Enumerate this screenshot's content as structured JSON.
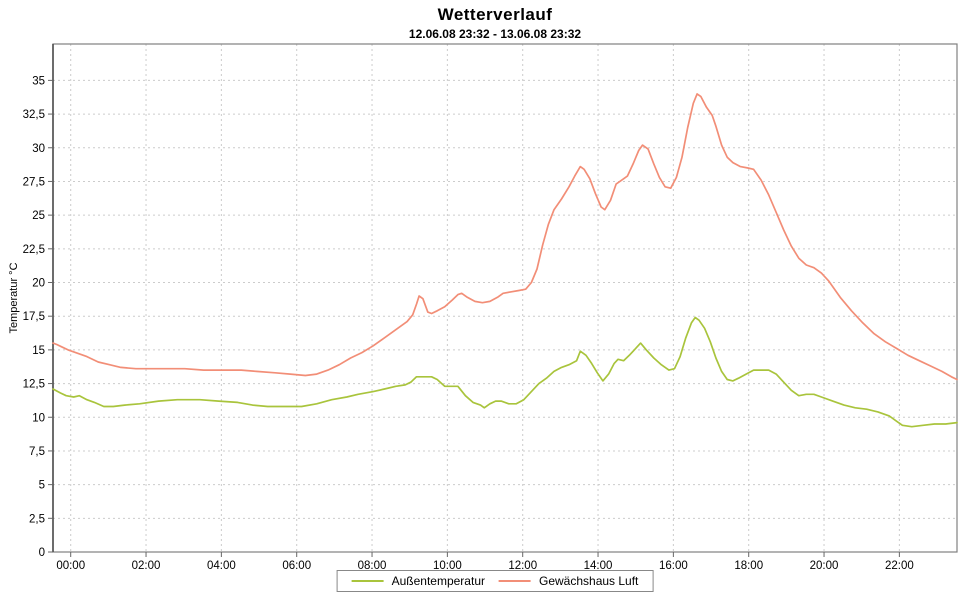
{
  "header": {
    "title": "Wetterverlauf",
    "subtitle": "12.06.08 23:32 - 13.06.08 23:32"
  },
  "colors": {
    "grid": "#cccccc",
    "frame": "#808080",
    "tick": "#666666",
    "text": "#000000",
    "background": "#ffffff",
    "outdoor_series": "#a9c43c",
    "greenhouse_series": "#f28e77"
  },
  "chart_data": {
    "type": "line",
    "title": "Wetterverlauf",
    "subtitle": "12.06.08 23:32 - 13.06.08 23:32",
    "xlabel": "",
    "ylabel": "Temperatur  °C",
    "x_unit": "hours since 12.06.08 23:32",
    "xlim": [
      0,
      24
    ],
    "ylim": [
      0,
      37.7
    ],
    "grid": true,
    "legend_position": "bottom-center",
    "x_ticks": [
      {
        "pos": 0.47,
        "label": "00:00"
      },
      {
        "pos": 2.47,
        "label": "02:00"
      },
      {
        "pos": 4.47,
        "label": "04:00"
      },
      {
        "pos": 6.47,
        "label": "06:00"
      },
      {
        "pos": 8.47,
        "label": "08:00"
      },
      {
        "pos": 10.47,
        "label": "10:00"
      },
      {
        "pos": 12.47,
        "label": "12:00"
      },
      {
        "pos": 14.47,
        "label": "14:00"
      },
      {
        "pos": 16.47,
        "label": "16:00"
      },
      {
        "pos": 18.47,
        "label": "18:00"
      },
      {
        "pos": 20.47,
        "label": "20:00"
      },
      {
        "pos": 22.47,
        "label": "22:00"
      }
    ],
    "y_ticks": [
      {
        "pos": 0,
        "label": "0"
      },
      {
        "pos": 2.5,
        "label": "2,5"
      },
      {
        "pos": 5,
        "label": "5"
      },
      {
        "pos": 7.5,
        "label": "7,5"
      },
      {
        "pos": 10,
        "label": "10"
      },
      {
        "pos": 12.5,
        "label": "12,5"
      },
      {
        "pos": 15,
        "label": "15"
      },
      {
        "pos": 17.5,
        "label": "17,5"
      },
      {
        "pos": 20,
        "label": "20"
      },
      {
        "pos": 22.5,
        "label": "22,5"
      },
      {
        "pos": 25,
        "label": "25"
      },
      {
        "pos": 27.5,
        "label": "27,5"
      },
      {
        "pos": 30,
        "label": "30"
      },
      {
        "pos": 32.5,
        "label": "32,5"
      },
      {
        "pos": 35,
        "label": "35"
      }
    ],
    "series": [
      {
        "name": "Außentemperatur",
        "color": "#a9c43c",
        "points": [
          [
            0,
            12.1
          ],
          [
            0.2,
            11.8
          ],
          [
            0.35,
            11.6
          ],
          [
            0.55,
            11.5
          ],
          [
            0.7,
            11.6
          ],
          [
            0.9,
            11.3
          ],
          [
            1.1,
            11.1
          ],
          [
            1.35,
            10.8
          ],
          [
            1.6,
            10.8
          ],
          [
            1.9,
            10.9
          ],
          [
            2.3,
            11.0
          ],
          [
            2.8,
            11.2
          ],
          [
            3.3,
            11.3
          ],
          [
            3.9,
            11.3
          ],
          [
            4.4,
            11.2
          ],
          [
            4.9,
            11.1
          ],
          [
            5.3,
            10.9
          ],
          [
            5.7,
            10.8
          ],
          [
            6.2,
            10.8
          ],
          [
            6.6,
            10.8
          ],
          [
            7.0,
            11.0
          ],
          [
            7.4,
            11.3
          ],
          [
            7.8,
            11.5
          ],
          [
            8.1,
            11.7
          ],
          [
            8.5,
            11.9
          ],
          [
            8.8,
            12.1
          ],
          [
            9.1,
            12.3
          ],
          [
            9.35,
            12.4
          ],
          [
            9.5,
            12.6
          ],
          [
            9.65,
            13.0
          ],
          [
            9.85,
            13.0
          ],
          [
            10.05,
            13.0
          ],
          [
            10.2,
            12.8
          ],
          [
            10.4,
            12.3
          ],
          [
            10.6,
            12.3
          ],
          [
            10.75,
            12.3
          ],
          [
            10.95,
            11.6
          ],
          [
            11.15,
            11.1
          ],
          [
            11.35,
            10.9
          ],
          [
            11.45,
            10.7
          ],
          [
            11.6,
            11.0
          ],
          [
            11.75,
            11.2
          ],
          [
            11.9,
            11.2
          ],
          [
            12.1,
            11.0
          ],
          [
            12.3,
            11.0
          ],
          [
            12.5,
            11.3
          ],
          [
            12.7,
            11.9
          ],
          [
            12.9,
            12.5
          ],
          [
            13.1,
            12.9
          ],
          [
            13.3,
            13.4
          ],
          [
            13.5,
            13.7
          ],
          [
            13.7,
            13.9
          ],
          [
            13.9,
            14.2
          ],
          [
            14.0,
            14.9
          ],
          [
            14.15,
            14.6
          ],
          [
            14.3,
            14.0
          ],
          [
            14.45,
            13.3
          ],
          [
            14.6,
            12.7
          ],
          [
            14.75,
            13.2
          ],
          [
            14.9,
            14.0
          ],
          [
            15.0,
            14.3
          ],
          [
            15.15,
            14.2
          ],
          [
            15.3,
            14.6
          ],
          [
            15.5,
            15.2
          ],
          [
            15.6,
            15.5
          ],
          [
            15.75,
            15.0
          ],
          [
            15.95,
            14.4
          ],
          [
            16.15,
            13.9
          ],
          [
            16.35,
            13.5
          ],
          [
            16.5,
            13.6
          ],
          [
            16.65,
            14.5
          ],
          [
            16.8,
            15.9
          ],
          [
            16.95,
            17.0
          ],
          [
            17.05,
            17.4
          ],
          [
            17.15,
            17.2
          ],
          [
            17.3,
            16.6
          ],
          [
            17.45,
            15.6
          ],
          [
            17.6,
            14.4
          ],
          [
            17.75,
            13.4
          ],
          [
            17.9,
            12.8
          ],
          [
            18.05,
            12.7
          ],
          [
            18.2,
            12.9
          ],
          [
            18.4,
            13.2
          ],
          [
            18.6,
            13.5
          ],
          [
            18.8,
            13.5
          ],
          [
            19.0,
            13.5
          ],
          [
            19.2,
            13.2
          ],
          [
            19.4,
            12.6
          ],
          [
            19.6,
            12.0
          ],
          [
            19.8,
            11.6
          ],
          [
            20.0,
            11.7
          ],
          [
            20.2,
            11.7
          ],
          [
            20.4,
            11.5
          ],
          [
            20.7,
            11.2
          ],
          [
            21.0,
            10.9
          ],
          [
            21.3,
            10.7
          ],
          [
            21.6,
            10.6
          ],
          [
            21.9,
            10.4
          ],
          [
            22.2,
            10.1
          ],
          [
            22.4,
            9.7
          ],
          [
            22.55,
            9.4
          ],
          [
            22.8,
            9.3
          ],
          [
            23.1,
            9.4
          ],
          [
            23.4,
            9.5
          ],
          [
            23.7,
            9.5
          ],
          [
            24,
            9.6
          ]
        ]
      },
      {
        "name": "Gewächshaus Luft",
        "color": "#f28e77",
        "points": [
          [
            0,
            15.5
          ],
          [
            0.1,
            15.4
          ],
          [
            0.25,
            15.2
          ],
          [
            0.4,
            15.0
          ],
          [
            0.6,
            14.8
          ],
          [
            0.9,
            14.5
          ],
          [
            1.2,
            14.1
          ],
          [
            1.5,
            13.9
          ],
          [
            1.8,
            13.7
          ],
          [
            2.2,
            13.6
          ],
          [
            2.6,
            13.6
          ],
          [
            3.0,
            13.6
          ],
          [
            3.5,
            13.6
          ],
          [
            4.0,
            13.5
          ],
          [
            4.5,
            13.5
          ],
          [
            5.0,
            13.5
          ],
          [
            5.4,
            13.4
          ],
          [
            5.9,
            13.3
          ],
          [
            6.3,
            13.2
          ],
          [
            6.7,
            13.1
          ],
          [
            7.0,
            13.2
          ],
          [
            7.3,
            13.5
          ],
          [
            7.6,
            13.9
          ],
          [
            7.9,
            14.4
          ],
          [
            8.2,
            14.8
          ],
          [
            8.5,
            15.3
          ],
          [
            8.8,
            15.9
          ],
          [
            9.1,
            16.5
          ],
          [
            9.4,
            17.1
          ],
          [
            9.55,
            17.6
          ],
          [
            9.65,
            18.4
          ],
          [
            9.72,
            19.0
          ],
          [
            9.82,
            18.8
          ],
          [
            9.95,
            17.8
          ],
          [
            10.05,
            17.7
          ],
          [
            10.2,
            17.9
          ],
          [
            10.4,
            18.2
          ],
          [
            10.6,
            18.7
          ],
          [
            10.75,
            19.1
          ],
          [
            10.85,
            19.2
          ],
          [
            11.0,
            18.9
          ],
          [
            11.2,
            18.6
          ],
          [
            11.4,
            18.5
          ],
          [
            11.6,
            18.6
          ],
          [
            11.8,
            18.9
          ],
          [
            11.95,
            19.2
          ],
          [
            12.15,
            19.3
          ],
          [
            12.35,
            19.4
          ],
          [
            12.55,
            19.5
          ],
          [
            12.7,
            20.0
          ],
          [
            12.85,
            21.0
          ],
          [
            13.0,
            22.8
          ],
          [
            13.15,
            24.3
          ],
          [
            13.3,
            25.4
          ],
          [
            13.5,
            26.2
          ],
          [
            13.7,
            27.1
          ],
          [
            13.85,
            27.9
          ],
          [
            14.0,
            28.6
          ],
          [
            14.1,
            28.4
          ],
          [
            14.25,
            27.7
          ],
          [
            14.4,
            26.6
          ],
          [
            14.55,
            25.6
          ],
          [
            14.65,
            25.4
          ],
          [
            14.8,
            26.1
          ],
          [
            14.95,
            27.3
          ],
          [
            15.1,
            27.6
          ],
          [
            15.25,
            27.9
          ],
          [
            15.4,
            28.8
          ],
          [
            15.55,
            29.8
          ],
          [
            15.65,
            30.2
          ],
          [
            15.8,
            29.9
          ],
          [
            15.95,
            28.8
          ],
          [
            16.1,
            27.8
          ],
          [
            16.25,
            27.1
          ],
          [
            16.4,
            27.0
          ],
          [
            16.55,
            27.8
          ],
          [
            16.7,
            29.3
          ],
          [
            16.85,
            31.5
          ],
          [
            17.0,
            33.3
          ],
          [
            17.1,
            34.0
          ],
          [
            17.2,
            33.8
          ],
          [
            17.35,
            33.0
          ],
          [
            17.5,
            32.4
          ],
          [
            17.6,
            31.6
          ],
          [
            17.75,
            30.2
          ],
          [
            17.9,
            29.3
          ],
          [
            18.05,
            28.9
          ],
          [
            18.25,
            28.6
          ],
          [
            18.45,
            28.5
          ],
          [
            18.6,
            28.4
          ],
          [
            18.8,
            27.6
          ],
          [
            19.0,
            26.5
          ],
          [
            19.2,
            25.2
          ],
          [
            19.4,
            23.9
          ],
          [
            19.6,
            22.7
          ],
          [
            19.8,
            21.8
          ],
          [
            20.0,
            21.3
          ],
          [
            20.2,
            21.1
          ],
          [
            20.4,
            20.7
          ],
          [
            20.6,
            20.1
          ],
          [
            20.9,
            18.9
          ],
          [
            21.2,
            17.9
          ],
          [
            21.5,
            17.0
          ],
          [
            21.8,
            16.2
          ],
          [
            22.1,
            15.6
          ],
          [
            22.4,
            15.1
          ],
          [
            22.7,
            14.6
          ],
          [
            23.0,
            14.2
          ],
          [
            23.3,
            13.8
          ],
          [
            23.6,
            13.4
          ],
          [
            23.85,
            13.0
          ],
          [
            24,
            12.8
          ]
        ]
      }
    ]
  },
  "legend": {
    "entries": [
      {
        "label": "Außentemperatur",
        "color": "#a9c43c"
      },
      {
        "label": "Gewächshaus Luft",
        "color": "#f28e77"
      }
    ]
  }
}
